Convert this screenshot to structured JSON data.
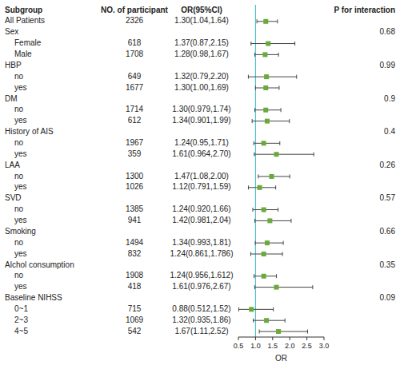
{
  "chart_data": {
    "type": "forest",
    "columns": [
      "Subgroup",
      "NO. of participant",
      "OR(95%CI)",
      "P for interaction"
    ],
    "categories": [
      "All Patients",
      "Sex",
      "Female",
      "Male",
      "HBP",
      "no",
      "yes",
      "DM",
      "no",
      "yes",
      "History of AIS",
      "no",
      "yes",
      "LAA",
      "no",
      "yes",
      "SVD",
      "no",
      "yes",
      "Smoking",
      "no",
      "yes",
      "Alchol consumption",
      "no",
      "yes",
      "Baseline NIHSS",
      "0~1",
      "2~3",
      "4~5"
    ],
    "indent": [
      false,
      false,
      true,
      true,
      false,
      true,
      true,
      false,
      true,
      true,
      false,
      true,
      true,
      false,
      true,
      true,
      false,
      true,
      true,
      false,
      true,
      true,
      false,
      true,
      true,
      false,
      true,
      true,
      true
    ],
    "n": [
      2326,
      null,
      618,
      1708,
      null,
      649,
      1677,
      null,
      1714,
      612,
      null,
      1967,
      359,
      null,
      1300,
      1026,
      null,
      1385,
      941,
      null,
      1494,
      832,
      null,
      1908,
      418,
      null,
      715,
      1069,
      542
    ],
    "values": [
      1.3,
      null,
      1.37,
      1.28,
      null,
      1.32,
      1.3,
      null,
      1.3,
      1.34,
      null,
      1.24,
      1.61,
      null,
      1.47,
      1.12,
      null,
      1.24,
      1.42,
      null,
      1.34,
      1.24,
      null,
      1.24,
      1.61,
      null,
      0.88,
      1.32,
      1.67
    ],
    "ci_low": [
      1.04,
      null,
      0.87,
      0.98,
      null,
      0.79,
      1.0,
      null,
      0.979,
      0.901,
      null,
      0.95,
      0.964,
      null,
      1.08,
      0.791,
      null,
      0.92,
      0.981,
      null,
      0.993,
      0.861,
      null,
      0.956,
      0.976,
      null,
      0.512,
      0.935,
      1.11
    ],
    "ci_high": [
      1.64,
      null,
      2.15,
      1.67,
      null,
      2.2,
      1.69,
      null,
      1.74,
      1.99,
      null,
      1.71,
      2.7,
      null,
      2.0,
      1.59,
      null,
      1.66,
      2.04,
      null,
      1.81,
      1.786,
      null,
      1.612,
      2.67,
      null,
      1.52,
      1.86,
      2.52
    ],
    "value_labels": [
      "1.30(1.04,1.64)",
      null,
      "1.37(0.87,2.15)",
      "1.28(0.98,1.67)",
      null,
      "1.32(0.79,2.20)",
      "1.30(1.00,1.69)",
      null,
      "1.30(0.979,1.74)",
      "1.34(0.901,1.99)",
      null,
      "1.24(0.95,1.71)",
      "1.61(0.964,2.70)",
      null,
      "1.47(1.08,2.00)",
      "1.12(0.791,1.59)",
      null,
      "1.24(0.920,1.66)",
      "1.42(0.981,2.04)",
      null,
      "1.34(0.993,1.81)",
      "1.24(0.861,1.786)",
      null,
      "1.24(0.956,1.612)",
      "1.61(0.976,2.67)",
      null,
      "0.88(0.512,1.52)",
      "1.32(0.935,1.86)",
      "1.67(1.11,2.52)"
    ],
    "p_interaction": [
      null,
      0.68,
      null,
      null,
      0.99,
      null,
      null,
      0.9,
      null,
      null,
      0.4,
      null,
      null,
      0.26,
      null,
      null,
      0.57,
      null,
      null,
      0.66,
      null,
      null,
      0.35,
      null,
      null,
      0.09,
      null,
      null,
      null
    ],
    "color": "#6aaa3a",
    "ref_line": {
      "value": 1.0,
      "color": "#5bbfc9"
    },
    "xlim": [
      0.5,
      3.0
    ],
    "xticks": [
      0.5,
      {
        "value": 1.0,
        "label": "1.0"
      },
      1.5,
      {
        "value": 2.0,
        "label": "2.0"
      },
      2.5,
      {
        "value": 3.0,
        "label": "3.0"
      }
    ],
    "xlabel": "OR"
  }
}
